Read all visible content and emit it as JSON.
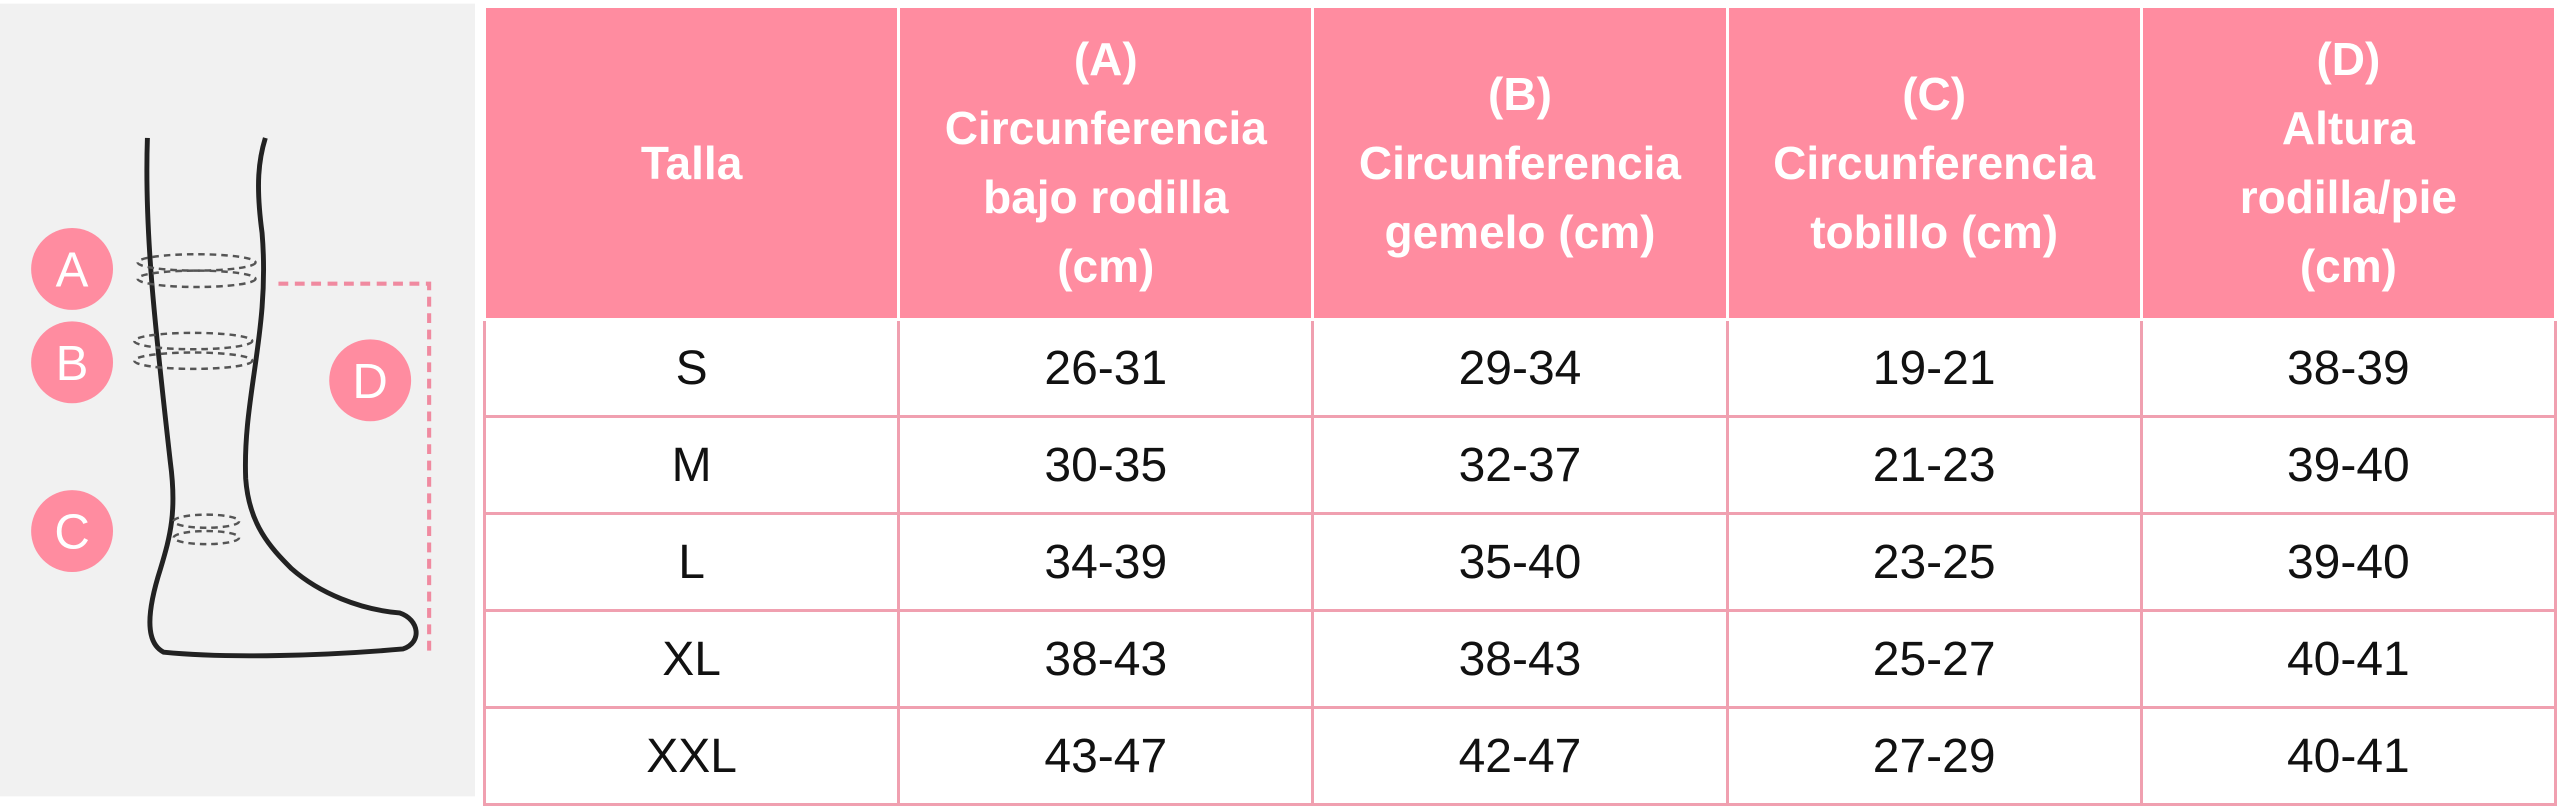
{
  "illustration": {
    "labels": [
      "A",
      "B",
      "C",
      "D"
    ]
  },
  "table": {
    "headers": [
      [
        "Talla"
      ],
      [
        "(A)",
        "Circunferencia",
        "bajo rodilla",
        "(cm)"
      ],
      [
        "(B)",
        "Circunferencia",
        "gemelo (cm)"
      ],
      [
        "(C)",
        "Circunferencia",
        "tobillo (cm)"
      ],
      [
        "(D)",
        "Altura",
        "rodilla/pie",
        "(cm)"
      ]
    ],
    "rows": [
      [
        "S",
        "26-31",
        "29-34",
        "19-21",
        "38-39"
      ],
      [
        "M",
        "30-35",
        "32-37",
        "21-23",
        "39-40"
      ],
      [
        "L",
        "34-39",
        "35-40",
        "23-25",
        "39-40"
      ],
      [
        "XL",
        "38-43",
        "38-43",
        "25-27",
        "40-41"
      ],
      [
        "XXL",
        "43-47",
        "42-47",
        "27-29",
        "40-41"
      ]
    ]
  }
}
